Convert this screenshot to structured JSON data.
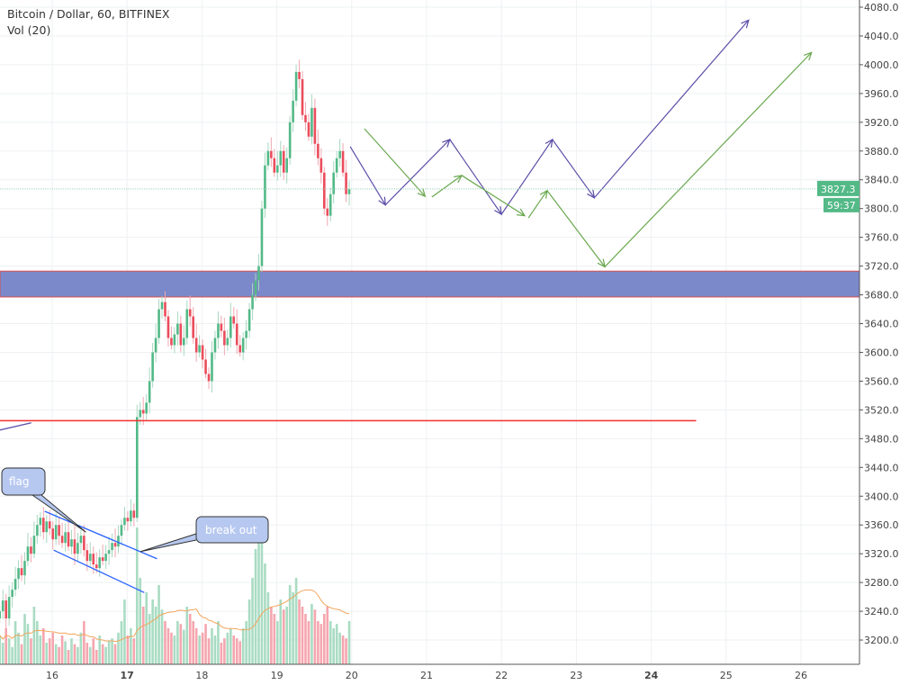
{
  "header": {
    "title": "Bitcoin / Dollar, 60, BITFINEX",
    "volume_label": "Vol (20)"
  },
  "chart_data": {
    "type": "candlestick",
    "symbol": "Bitcoin / Dollar",
    "interval": "60",
    "exchange": "BITFINEX",
    "ylim": [
      3170,
      4090
    ],
    "xlim": [
      15.3,
      26.75
    ],
    "y_ticks": [
      3200,
      3240,
      3280,
      3320,
      3360,
      3400,
      3440,
      3480,
      3520,
      3560,
      3600,
      3640,
      3680,
      3720,
      3760,
      3800,
      3840,
      3880,
      3920,
      3960,
      4000,
      4040,
      4080
    ],
    "x_ticks": [
      {
        "day": 16,
        "label": "16"
      },
      {
        "day": 17,
        "label": "17",
        "bold": true
      },
      {
        "day": 18,
        "label": "18"
      },
      {
        "day": 19,
        "label": "19"
      },
      {
        "day": 20,
        "label": "20"
      },
      {
        "day": 21,
        "label": "21"
      },
      {
        "day": 22,
        "label": "22"
      },
      {
        "day": 23,
        "label": "23"
      },
      {
        "day": 24,
        "label": "24",
        "bold": true
      },
      {
        "day": 25,
        "label": "25"
      },
      {
        "day": 26,
        "label": "26"
      }
    ],
    "first_candle_day": 15.3,
    "candle_hours": 1,
    "closes": [
      3240,
      3255,
      3230,
      3260,
      3270,
      3285,
      3300,
      3290,
      3310,
      3330,
      3320,
      3345,
      3360,
      3370,
      3350,
      3365,
      3355,
      3340,
      3360,
      3345,
      3335,
      3350,
      3330,
      3340,
      3320,
      3335,
      3345,
      3325,
      3310,
      3320,
      3305,
      3300,
      3315,
      3310,
      3320,
      3325,
      3335,
      3330,
      3345,
      3360,
      3370,
      3365,
      3380,
      3370,
      3510,
      3520,
      3515,
      3530,
      3560,
      3600,
      3620,
      3660,
      3670,
      3650,
      3620,
      3610,
      3625,
      3640,
      3610,
      3620,
      3660,
      3650,
      3620,
      3600,
      3610,
      3590,
      3570,
      3560,
      3600,
      3620,
      3640,
      3630,
      3610,
      3620,
      3650,
      3640,
      3610,
      3600,
      3620,
      3630,
      3660,
      3680,
      3700,
      3720,
      3800,
      3860,
      3880,
      3870,
      3850,
      3860,
      3880,
      3850,
      3870,
      3920,
      3950,
      3990,
      3980,
      3930,
      3920,
      3900,
      3940,
      3890,
      3870,
      3850,
      3800,
      3790,
      3820,
      3850,
      3870,
      3880,
      3850,
      3820,
      3827
    ],
    "volumes": [
      20,
      15,
      25,
      18,
      12,
      30,
      22,
      14,
      35,
      28,
      18,
      40,
      30,
      20,
      25,
      15,
      18,
      22,
      14,
      12,
      20,
      16,
      10,
      18,
      14,
      12,
      22,
      30,
      15,
      12,
      18,
      10,
      20,
      14,
      12,
      16,
      18,
      14,
      22,
      30,
      45,
      20,
      25,
      18,
      95,
      60,
      40,
      50,
      35,
      45,
      40,
      55,
      38,
      30,
      25,
      22,
      20,
      30,
      28,
      24,
      40,
      35,
      30,
      25,
      20,
      22,
      28,
      18,
      25,
      20,
      30,
      15,
      18,
      22,
      25,
      20,
      18,
      16,
      25,
      30,
      45,
      60,
      80,
      100,
      85,
      70,
      50,
      40,
      35,
      30,
      45,
      38,
      40,
      55,
      50,
      60,
      45,
      40,
      35,
      30,
      42,
      38,
      30,
      28,
      35,
      40,
      30,
      25,
      28,
      22,
      20,
      18,
      30
    ],
    "last_price": "3827.3",
    "countdown": "59:37",
    "colors": {
      "up": "#53b987",
      "down": "#eb4d5c",
      "vol_up": "#a9dcc3",
      "vol_down": "#f5a6ae",
      "volume_ma": "#f3a55b",
      "zone": "#7b88c9",
      "red_line": "#f22f2f",
      "purple_arrows": "#5b4ea8",
      "green_arrows": "#6aa84f",
      "flag_lines": "#2962ff",
      "last_price_bg": "#53b987"
    },
    "drawings": {
      "zone": {
        "from": 3677,
        "to": 3713
      },
      "support_line": {
        "price": 3505,
        "from_day": 15.3,
        "to_day": 24.6
      },
      "purple_path": [
        [
          19.98,
          3886
        ],
        [
          20.45,
          3805
        ],
        [
          21.31,
          3896
        ],
        [
          22.0,
          3792
        ],
        [
          22.68,
          3896
        ],
        [
          23.24,
          3815
        ],
        [
          25.3,
          4062
        ]
      ],
      "green_arrows": [
        [
          [
            20.17,
            3911
          ],
          [
            20.98,
            3817
          ]
        ],
        [
          [
            21.07,
            3816
          ],
          [
            21.47,
            3846
          ]
        ],
        [
          [
            21.47,
            3846
          ],
          [
            22.31,
            3790
          ]
        ],
        [
          [
            22.36,
            3787
          ],
          [
            22.61,
            3825
          ]
        ],
        [
          [
            22.61,
            3825
          ],
          [
            23.38,
            3719
          ],
          [
            26.14,
            4017
          ]
        ]
      ],
      "flag_lines": [
        [
          [
            15.9,
            3379
          ],
          [
            17.4,
            3313
          ]
        ],
        [
          [
            16.02,
            3325
          ],
          [
            17.23,
            3266
          ]
        ]
      ],
      "small_line": [
        [
          15.3,
          3492
        ],
        [
          15.72,
          3502
        ]
      ]
    },
    "callouts": [
      {
        "text": "flag",
        "target": [
          16.45,
          3350
        ]
      },
      {
        "text": "break out",
        "target": [
          17.18,
          3323
        ]
      }
    ]
  }
}
